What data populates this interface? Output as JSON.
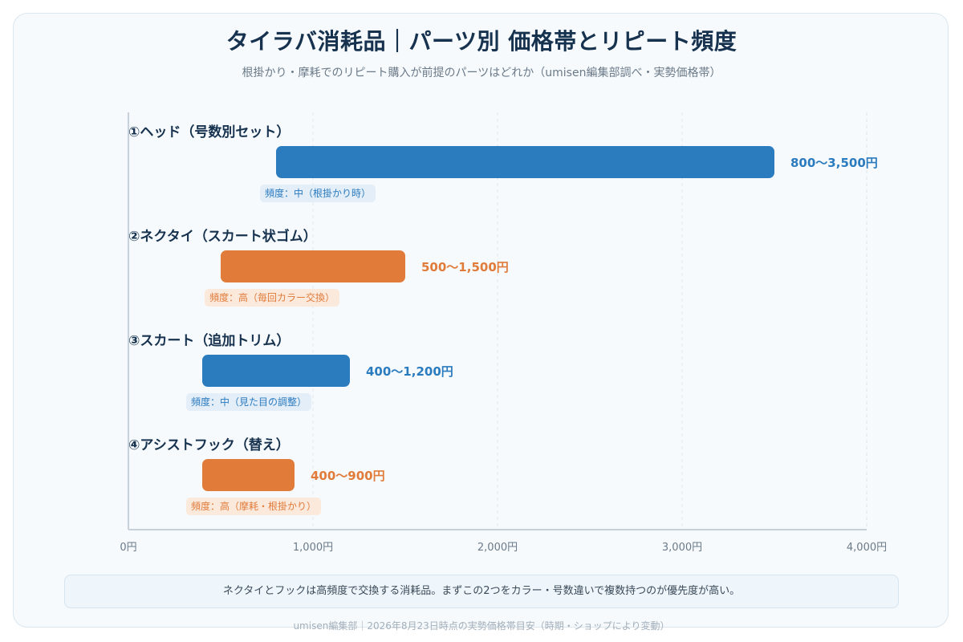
{
  "title": "タイラバ消耗品｜パーツ別 価格帯とリピート頻度",
  "subtitle": "根掛かり・摩耗でのリピート購入が前提のパーツはどれか（umisen編集部調べ・実勢価格帯）",
  "note": "ネクタイとフックは高頻度で交換する消耗品。まずこの2つをカラー・号数違いで複数持つのが優先度が高い。",
  "footer": "umisen編集部｜2026年8月23日時点の実勢価格帯目安（時期・ショップにより変動）",
  "colors": {
    "blue": "#2b7bbf",
    "orange": "#e07b39",
    "blue_badge_bg": "#e3eef8",
    "orange_badge_bg": "#fbe9dc"
  },
  "chart_data": {
    "type": "bar",
    "orientation": "horizontal-range",
    "xlim": [
      0,
      4000
    ],
    "x_ticks": [
      0,
      1000,
      2000,
      3000,
      4000
    ],
    "x_tick_labels": [
      "0円",
      "1,000円",
      "2,000円",
      "3,000円",
      "4,000円"
    ],
    "grid": "vertical dashed",
    "categories": [
      "①ヘッド（号数別セット）",
      "②ネクタイ（スカート状ゴム）",
      "③スカート（追加トリム）",
      "④アシストフック（替え）"
    ],
    "ranges": [
      {
        "min": 800,
        "max": 3500,
        "label": "800〜3,500円",
        "frequency": "頻度：中（根掛かり時）",
        "color": "blue"
      },
      {
        "min": 500,
        "max": 1500,
        "label": "500〜1,500円",
        "frequency": "頻度：高（毎回カラー交換）",
        "color": "orange"
      },
      {
        "min": 400,
        "max": 1200,
        "label": "400〜1,200円",
        "frequency": "頻度：中（見た目の調整）",
        "color": "blue"
      },
      {
        "min": 400,
        "max": 900,
        "label": "400〜900円",
        "frequency": "頻度：高（摩耗・根掛かり）",
        "color": "orange"
      }
    ]
  }
}
